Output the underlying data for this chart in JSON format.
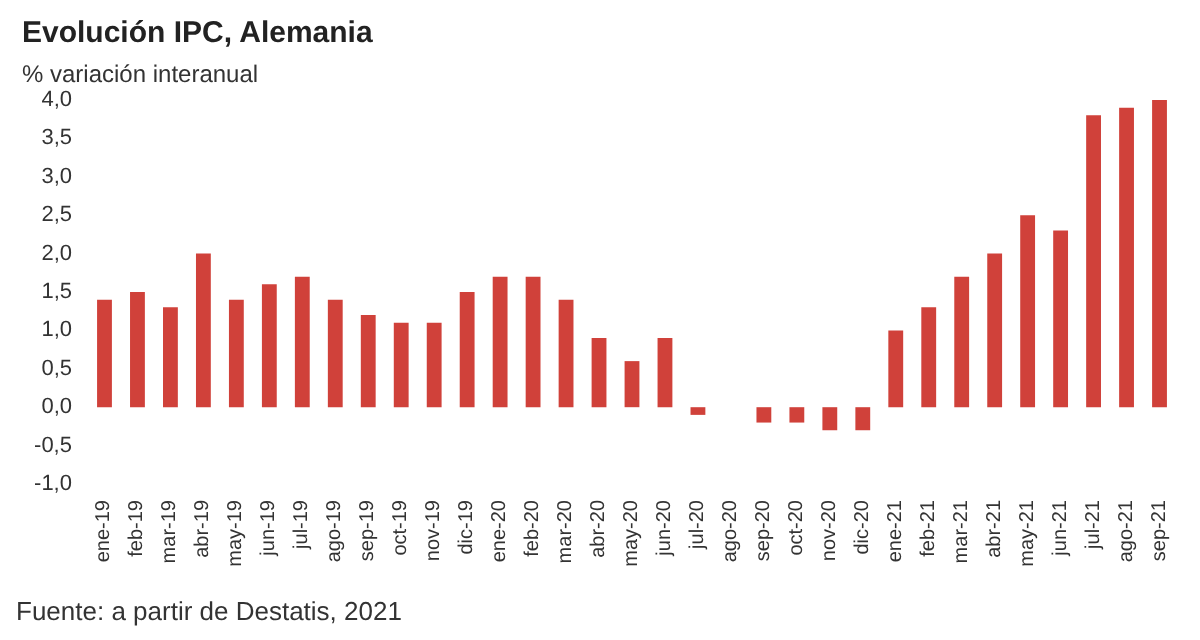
{
  "chart_data": {
    "type": "bar",
    "title": "Evolución IPC, Alemania",
    "subtitle": "% variación interanual",
    "categories": [
      "ene-19",
      "feb-19",
      "mar-19",
      "abr-19",
      "may-19",
      "jun-19",
      "jul-19",
      "ago-19",
      "sep-19",
      "oct-19",
      "nov-19",
      "dic-19",
      "ene-20",
      "feb-20",
      "mar-20",
      "abr-20",
      "may-20",
      "jun-20",
      "jul-20",
      "ago-20",
      "sep-20",
      "oct-20",
      "nov-20",
      "dic-20",
      "ene-21",
      "feb-21",
      "mar-21",
      "abr-21",
      "may-21",
      "jun-21",
      "jul-21",
      "ago-21",
      "sep-21"
    ],
    "values": [
      1.4,
      1.5,
      1.3,
      2.0,
      1.4,
      1.6,
      1.7,
      1.4,
      1.2,
      1.1,
      1.1,
      1.5,
      1.7,
      1.7,
      1.4,
      0.9,
      0.6,
      0.9,
      -0.1,
      0.0,
      -0.2,
      -0.2,
      -0.3,
      -0.3,
      1.0,
      1.3,
      1.7,
      2.0,
      2.5,
      2.3,
      3.8,
      3.9,
      4.0
    ],
    "color": "#d0413a",
    "ylim": [
      -1.0,
      4.0
    ],
    "yticks": [
      {
        "value": -1.0,
        "label": "-1,0"
      },
      {
        "value": -0.5,
        "label": "-0,5"
      },
      {
        "value": 0.0,
        "label": "0,0"
      },
      {
        "value": 0.5,
        "label": "0,5"
      },
      {
        "value": 1.0,
        "label": "1,0"
      },
      {
        "value": 1.5,
        "label": "1,5"
      },
      {
        "value": 2.0,
        "label": "2,0"
      },
      {
        "value": 2.5,
        "label": "2,5"
      },
      {
        "value": 3.0,
        "label": "3,0"
      },
      {
        "value": 3.5,
        "label": "3,5"
      },
      {
        "value": 4.0,
        "label": "4,0"
      }
    ],
    "grid": false,
    "annotations": [
      "Fuente: a partir de Destatis, 2021"
    ]
  }
}
